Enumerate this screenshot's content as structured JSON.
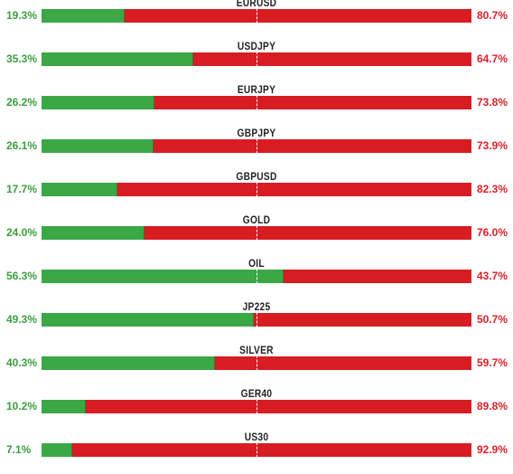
{
  "rows": [
    {
      "symbol": "EURUSD",
      "long_pct": "19.3%",
      "short_pct": "80.7%",
      "long_value": 19.3
    },
    {
      "symbol": "USDJPY",
      "long_pct": "35.3%",
      "short_pct": "64.7%",
      "long_value": 35.3
    },
    {
      "symbol": "EURJPY",
      "long_pct": "26.2%",
      "short_pct": "73.8%",
      "long_value": 26.2
    },
    {
      "symbol": "GBPJPY",
      "long_pct": "26.1%",
      "short_pct": "73.9%",
      "long_value": 26.1
    },
    {
      "symbol": "GBPUSD",
      "long_pct": "17.7%",
      "short_pct": "82.3%",
      "long_value": 17.7
    },
    {
      "symbol": "GOLD",
      "long_pct": "24.0%",
      "short_pct": "76.0%",
      "long_value": 24.0
    },
    {
      "symbol": "OIL",
      "long_pct": "56.3%",
      "short_pct": "43.7%",
      "long_value": 56.3
    },
    {
      "symbol": "JP225",
      "long_pct": "49.3%",
      "short_pct": "50.7%",
      "long_value": 49.3
    },
    {
      "symbol": "SILVER",
      "long_pct": "40.3%",
      "short_pct": "59.7%",
      "long_value": 40.3
    },
    {
      "symbol": "GER40",
      "long_pct": "10.2%",
      "short_pct": "89.8%",
      "long_value": 10.2
    },
    {
      "symbol": "US30",
      "long_pct": "7.1%",
      "short_pct": "92.9%",
      "long_value": 7.1
    }
  ],
  "colors": {
    "long": "#3aa845",
    "short": "#d71c22",
    "long_text": "#3a9e3f",
    "short_text": "#d9202a"
  }
}
